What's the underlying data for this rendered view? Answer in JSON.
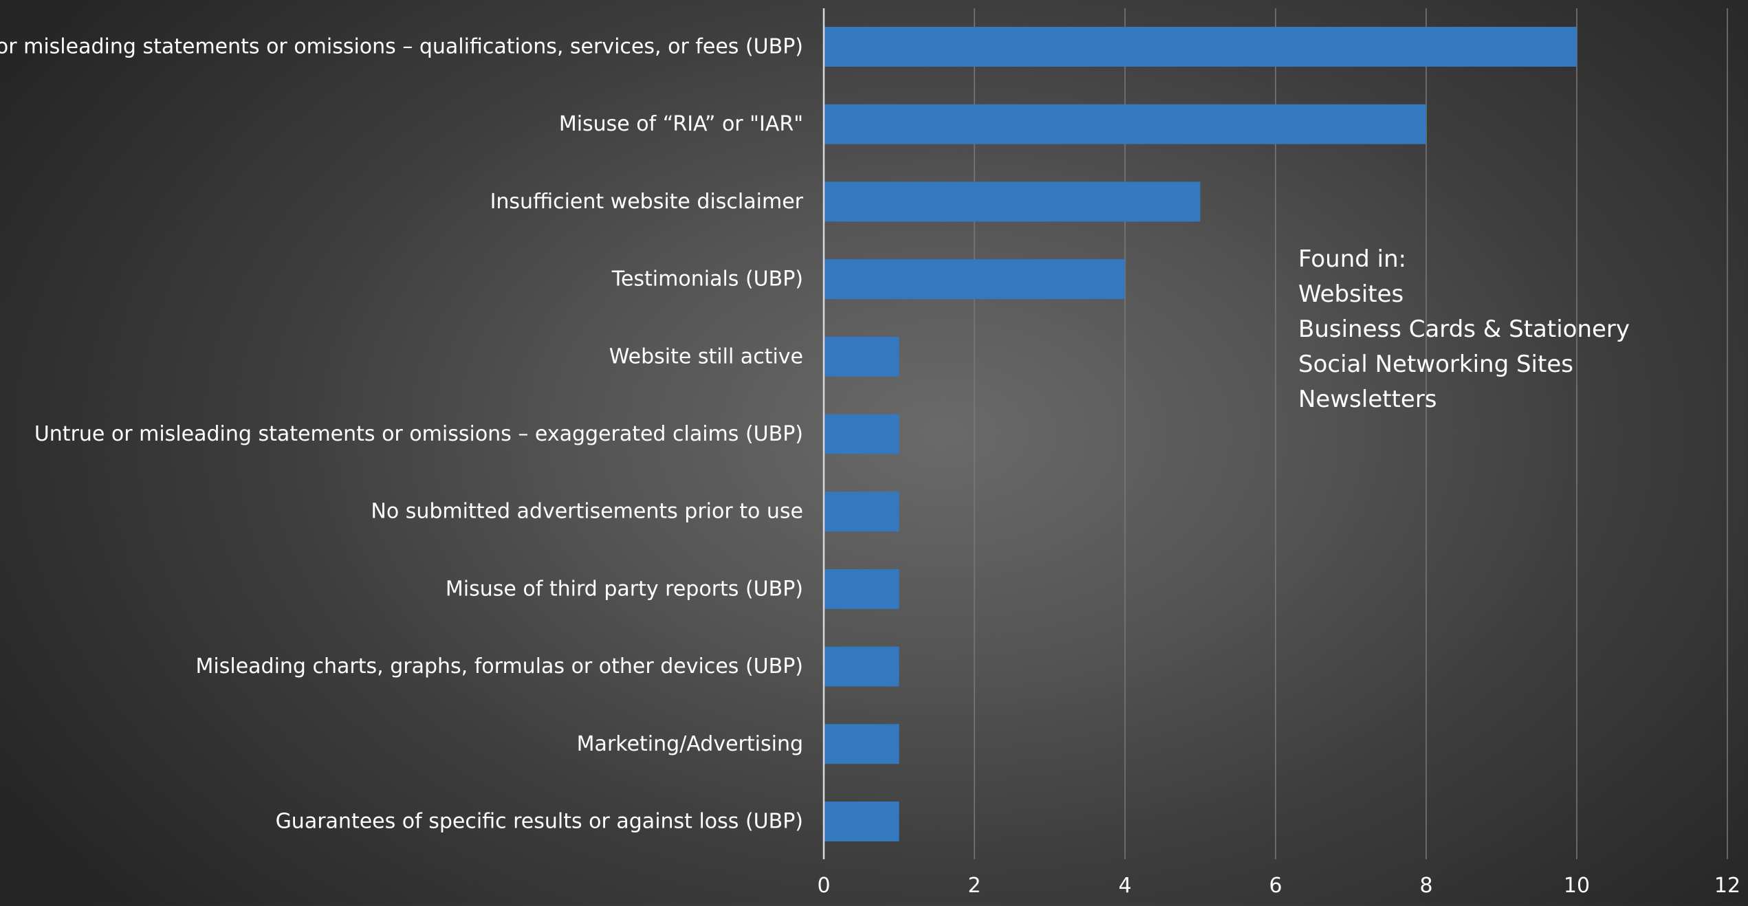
{
  "chart_data": {
    "type": "bar",
    "orientation": "horizontal",
    "categories": [
      "Untrue or misleading statements or omissions – qualifications, services, or fees (UBP)",
      "Misuse of “RIA” or \"IAR\"",
      "Insufficient website disclaimer",
      "Testimonials (UBP)",
      "Website still active",
      "Untrue or misleading statements or omissions – exaggerated claims (UBP)",
      "No submitted advertisements prior to use",
      "Misuse of third party reports (UBP)",
      "Misleading charts, graphs, formulas or other devices (UBP)",
      "Marketing/Advertising",
      "Guarantees of specific results or against loss (UBP)"
    ],
    "values": [
      10,
      8,
      5,
      4,
      1,
      1,
      1,
      1,
      1,
      1,
      1
    ],
    "xlim": [
      0,
      12
    ],
    "xticks": [
      "0",
      "2",
      "4",
      "6",
      "8",
      "10",
      "12"
    ],
    "grid": "vertical",
    "bar_color": "#3478be",
    "title": "",
    "xlabel": "",
    "ylabel": ""
  },
  "note": {
    "heading": "Found in:",
    "items": [
      "Websites",
      "Business Cards & Stationery",
      "Social Networking Sites",
      "Newsletters"
    ]
  }
}
